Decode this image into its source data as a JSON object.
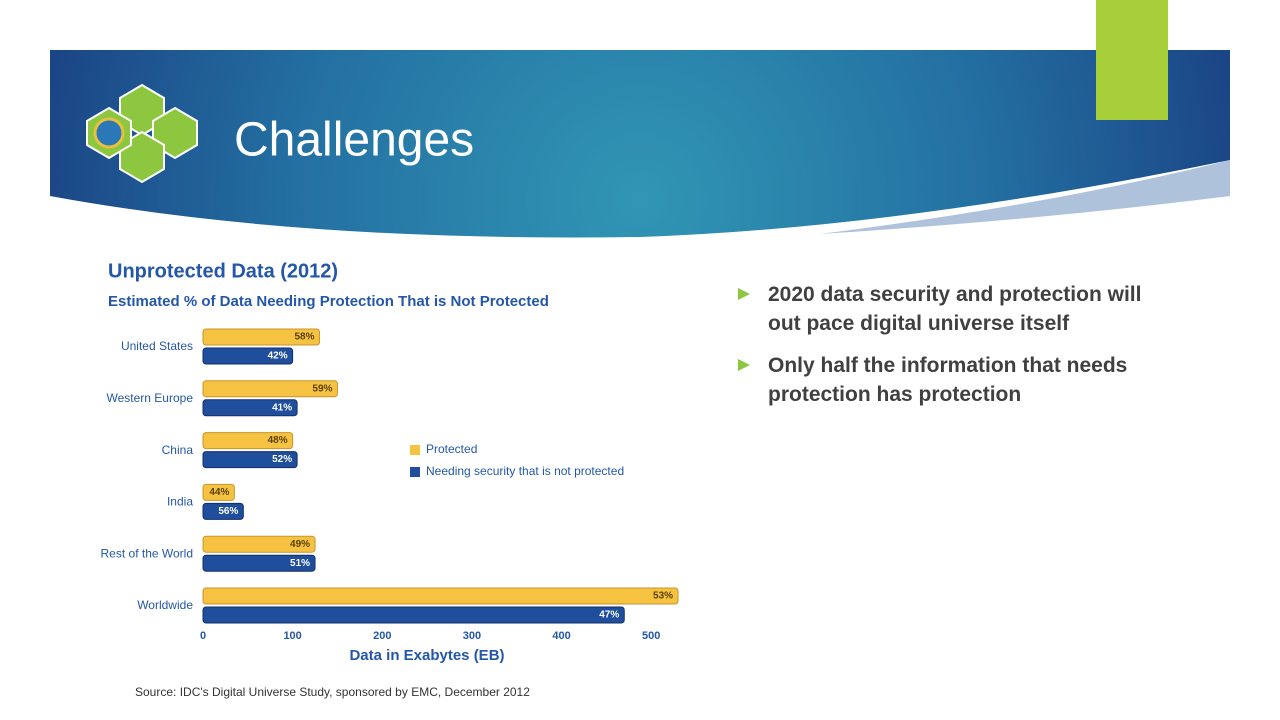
{
  "slide": {
    "title": "Challenges",
    "bullets": [
      "2020 data security and protection will out pace digital universe itself",
      "Only half the information that needs protection has protection"
    ],
    "source": "Source: IDC's Digital Universe Study, sponsored by EMC, December 2012"
  },
  "chart_data": {
    "type": "bar",
    "orientation": "horizontal",
    "title": "Unprotected Data (2012)",
    "subtitle": "Estimated % of Data Needing Protection That is Not Protected",
    "x_label": "Data in Exabytes (EB)",
    "categories": [
      "United States",
      "Western Europe",
      "China",
      "India",
      "Rest of the World",
      "Worldwide"
    ],
    "series": [
      {
        "name": "Protected",
        "color": "#f5c242",
        "values": [
          130,
          150,
          100,
          35,
          125,
          530
        ],
        "labels": [
          "58%",
          "59%",
          "48%",
          "44%",
          "49%",
          "53%"
        ]
      },
      {
        "name": "Needing security that is not protected",
        "color": "#1f4e9c",
        "values": [
          100,
          105,
          105,
          45,
          125,
          470
        ],
        "labels": [
          "42%",
          "41%",
          "52%",
          "56%",
          "51%",
          "47%"
        ]
      }
    ],
    "xlim": [
      0,
      540
    ],
    "xticks": [
      0,
      100,
      200,
      300,
      400,
      500
    ],
    "grid": false
  }
}
